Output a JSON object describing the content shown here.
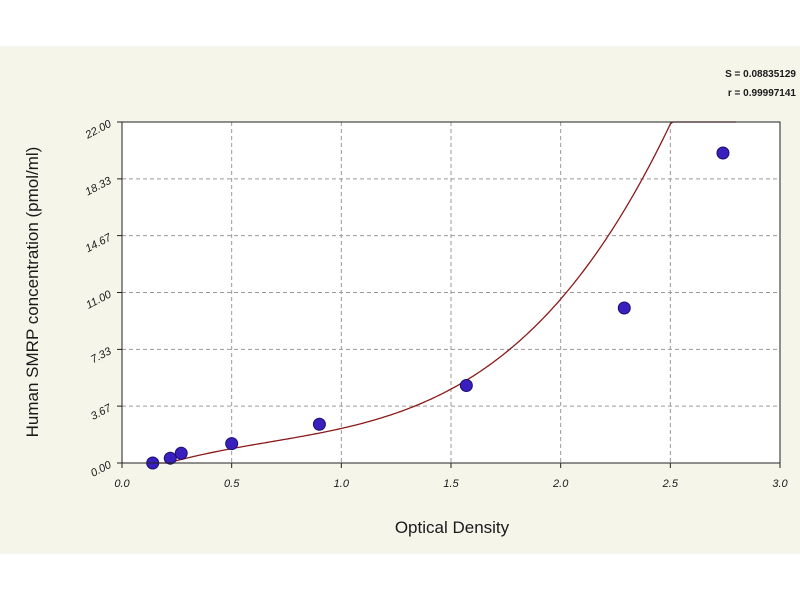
{
  "chart_data": {
    "type": "scatter",
    "title": "",
    "xlabel": "Optical Density",
    "ylabel": "Human SMRP concentration (pmol/ml)",
    "xlim": [
      0.0,
      3.0
    ],
    "ylim": [
      0.0,
      22.0
    ],
    "x_ticks": [
      0.0,
      0.5,
      1.0,
      1.5,
      2.0,
      2.5,
      3.0
    ],
    "x_tick_labels": [
      "0.0",
      "0.5",
      "1.0",
      "1.5",
      "2.0",
      "2.5",
      "3.0"
    ],
    "y_ticks": [
      0.0,
      3.67,
      7.33,
      11.0,
      14.67,
      18.33,
      22.0
    ],
    "y_tick_labels": [
      "0.00",
      "3.67",
      "7.33",
      "11.00",
      "14.67",
      "18.33",
      "22.00"
    ],
    "grid": true,
    "points": [
      {
        "x": 0.14,
        "y": 0.0
      },
      {
        "x": 0.22,
        "y": 0.31
      },
      {
        "x": 0.27,
        "y": 0.63
      },
      {
        "x": 0.5,
        "y": 1.25
      },
      {
        "x": 0.9,
        "y": 2.5
      },
      {
        "x": 1.57,
        "y": 5.0
      },
      {
        "x": 2.29,
        "y": 10.0
      },
      {
        "x": 2.74,
        "y": 20.0
      }
    ],
    "fit_curve": {
      "x_range": [
        0.14,
        2.8
      ],
      "coefficients": [
        -0.98,
        5.54,
        -4.52,
        2.06,
        0.1296
      ]
    },
    "stats": {
      "s_label": "S = 0.08835129",
      "r_label": "r = 0.99997141"
    },
    "colors": {
      "panel_background": "#f5f5ea",
      "plot_background": "#ffffff",
      "grid": "#9a9a9a",
      "curve": "#8b1a1a",
      "point_fill": "#3a1fbf",
      "point_stroke": "#1a0f6e"
    }
  }
}
